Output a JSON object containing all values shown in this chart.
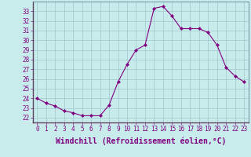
{
  "x": [
    0,
    1,
    2,
    3,
    4,
    5,
    6,
    7,
    8,
    9,
    10,
    11,
    12,
    13,
    14,
    15,
    16,
    17,
    18,
    19,
    20,
    21,
    22,
    23
  ],
  "y": [
    24.0,
    23.5,
    23.2,
    22.7,
    22.5,
    22.2,
    22.2,
    22.2,
    23.3,
    25.7,
    27.5,
    29.0,
    29.5,
    33.3,
    33.5,
    32.5,
    31.2,
    31.2,
    31.2,
    30.8,
    29.5,
    27.2,
    26.3,
    25.7
  ],
  "line_color": "#800080",
  "marker": "D",
  "marker_size": 2.0,
  "bg_color": "#c8ecec",
  "grid_color": "#a0c8d0",
  "tick_color": "#800080",
  "xlabel": "Windchill (Refroidissement éolien,°C)",
  "xlabel_fontsize": 7,
  "ylim": [
    21.5,
    34.0
  ],
  "xlim": [
    -0.5,
    23.5
  ],
  "yticks": [
    22,
    23,
    24,
    25,
    26,
    27,
    28,
    29,
    30,
    31,
    32,
    33
  ],
  "xticks": [
    0,
    1,
    2,
    3,
    4,
    5,
    6,
    7,
    8,
    9,
    10,
    11,
    12,
    13,
    14,
    15,
    16,
    17,
    18,
    19,
    20,
    21,
    22,
    23
  ],
  "tick_fontsize": 5.5,
  "linewidth": 0.8
}
